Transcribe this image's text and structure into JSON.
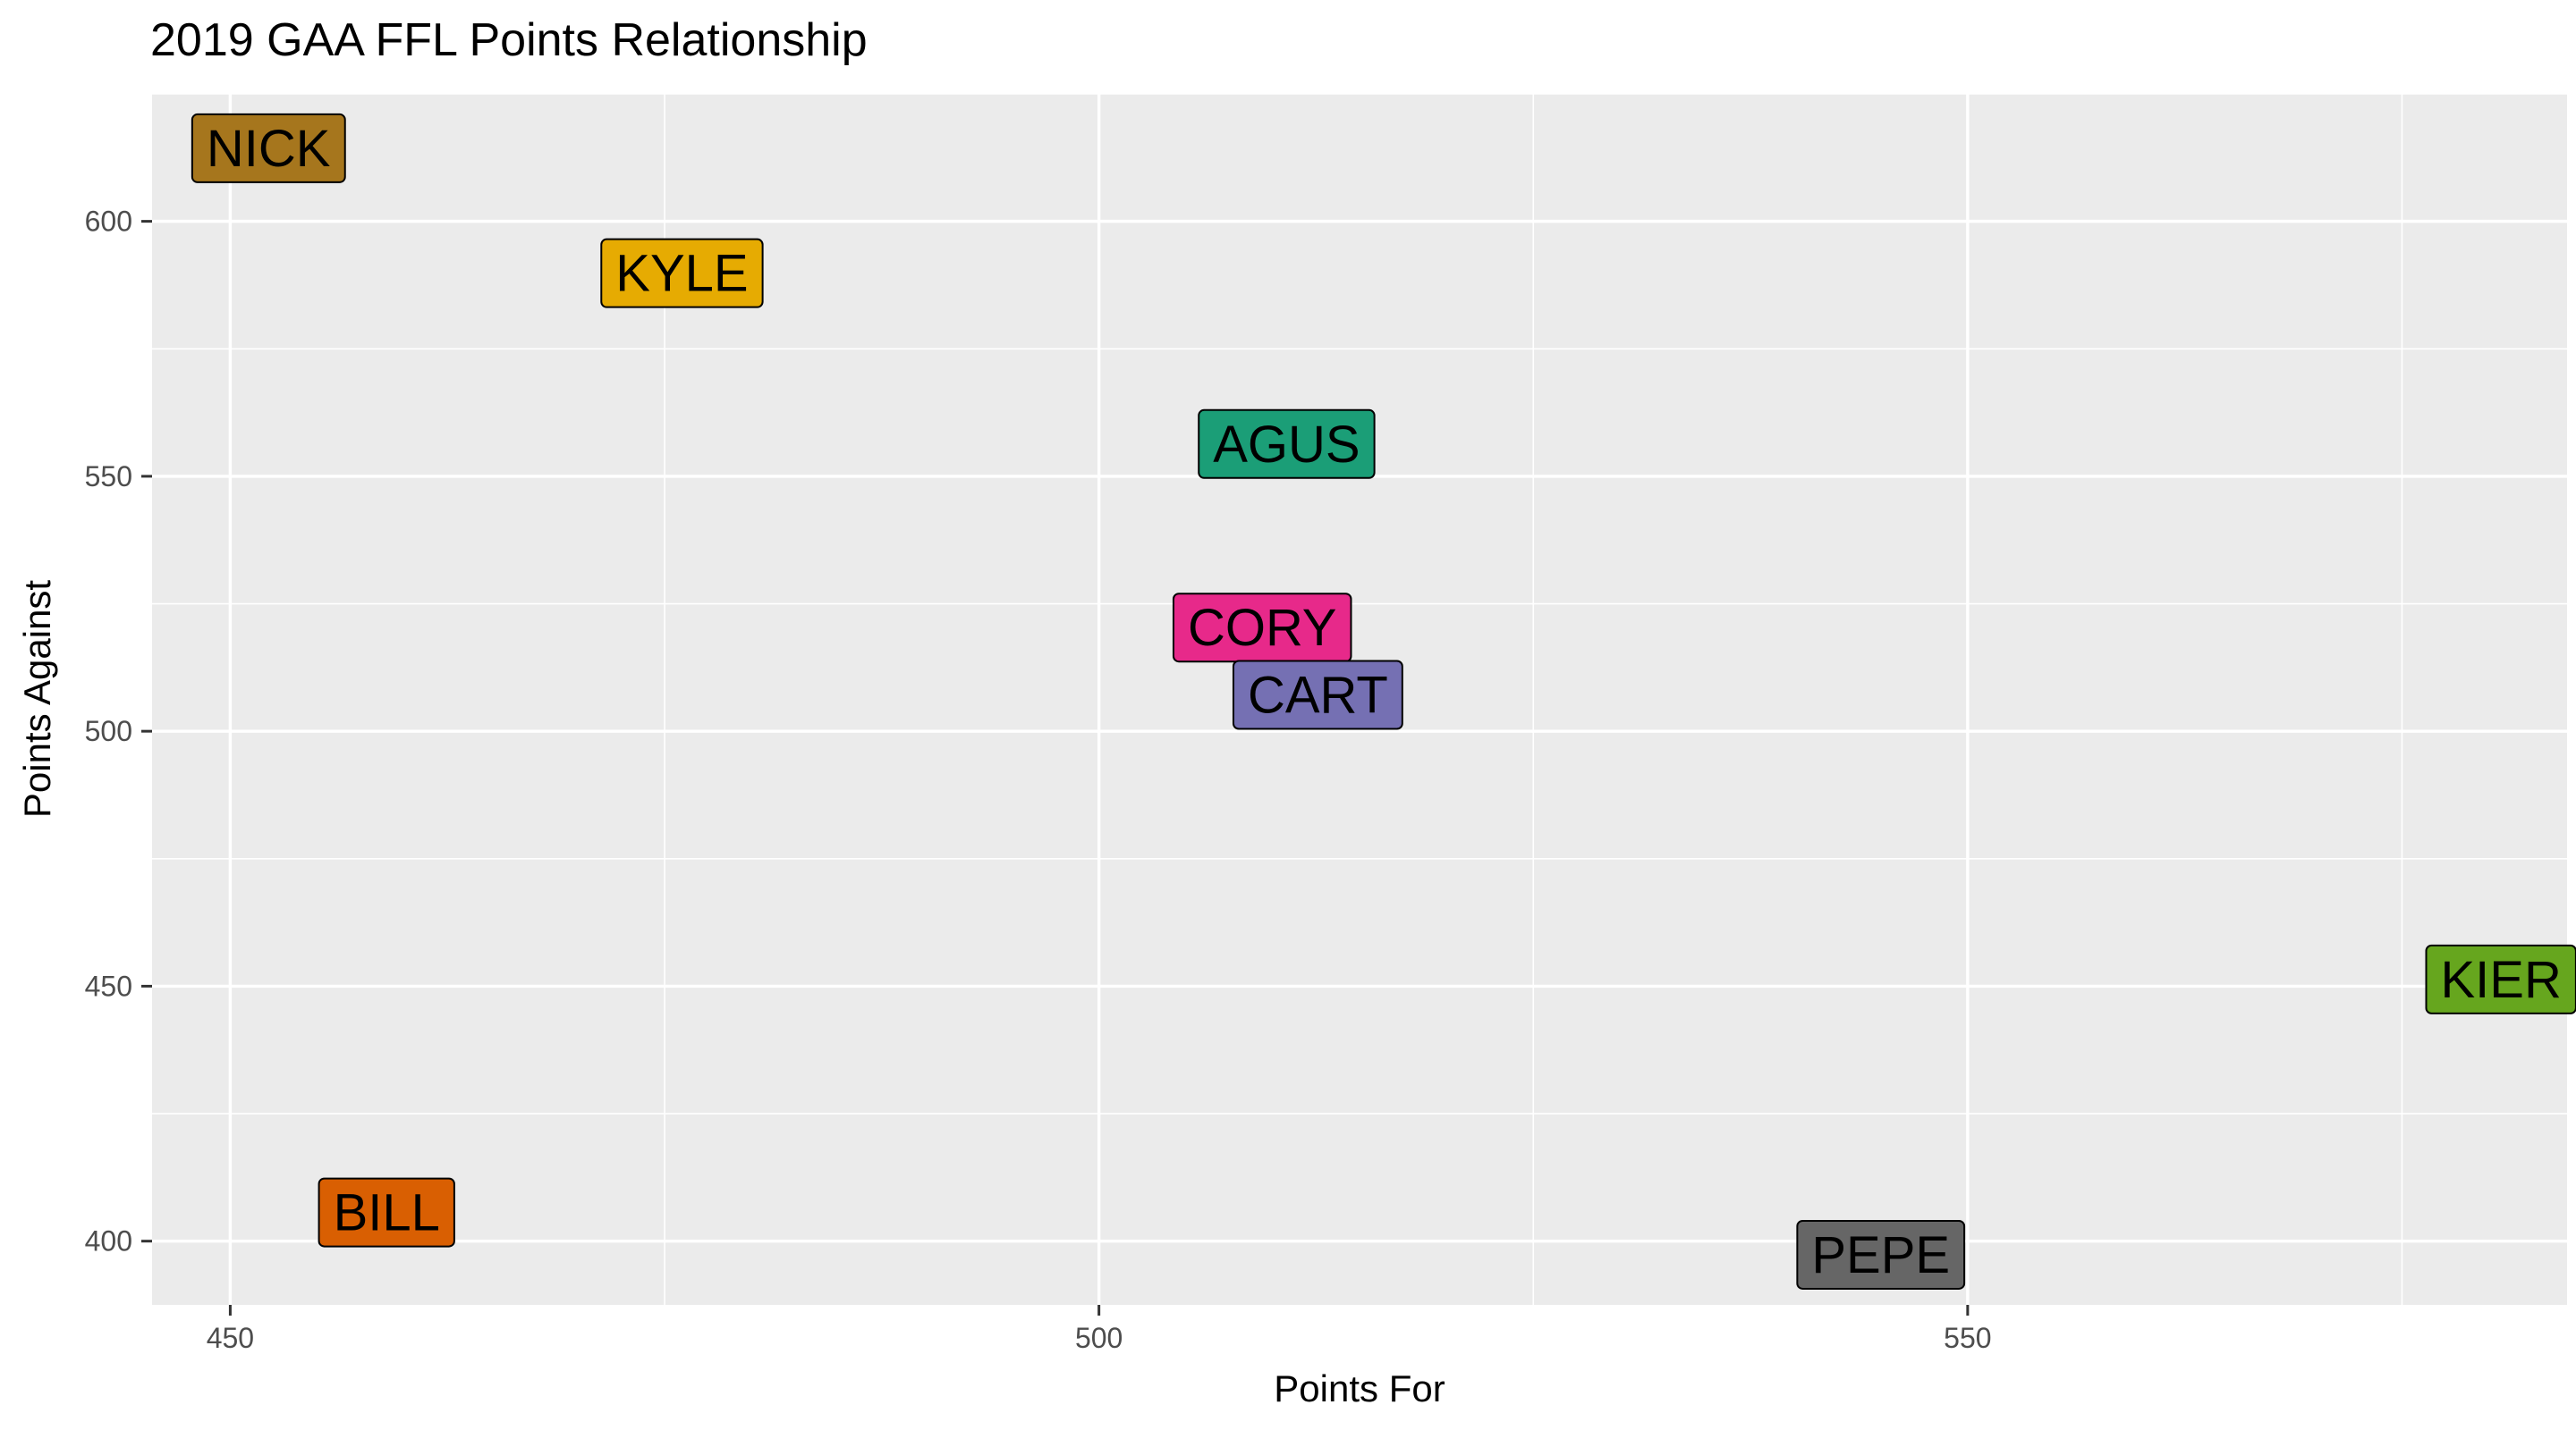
{
  "chart_data": {
    "type": "scatter",
    "title": "2019 GAA FFL Points Relationship",
    "xlabel": "Points For",
    "ylabel": "Points Against",
    "xlim": [
      445.5,
      584.5
    ],
    "ylim": [
      387.5,
      625
    ],
    "x_ticks": [
      450,
      500,
      550
    ],
    "y_ticks": [
      400,
      450,
      500,
      550,
      600
    ],
    "grid": true,
    "panel_background": "#ebebeb",
    "points": [
      {
        "label": "NICK",
        "x": 452.2,
        "y": 614.5,
        "color": "#a6761d"
      },
      {
        "label": "KYLE",
        "x": 476.0,
        "y": 590.0,
        "color": "#e6ab02"
      },
      {
        "label": "AGUS",
        "x": 510.8,
        "y": 556.5,
        "color": "#1b9e77"
      },
      {
        "label": "CORY",
        "x": 509.4,
        "y": 520.5,
        "color": "#e7298a"
      },
      {
        "label": "CART",
        "x": 512.6,
        "y": 507.3,
        "color": "#7570b3"
      },
      {
        "label": "KIER",
        "x": 580.7,
        "y": 451.5,
        "color": "#66a61e"
      },
      {
        "label": "BILL",
        "x": 459.0,
        "y": 405.8,
        "color": "#d95f02"
      },
      {
        "label": "PEPE",
        "x": 545.0,
        "y": 397.5,
        "color": "#666666"
      }
    ]
  }
}
